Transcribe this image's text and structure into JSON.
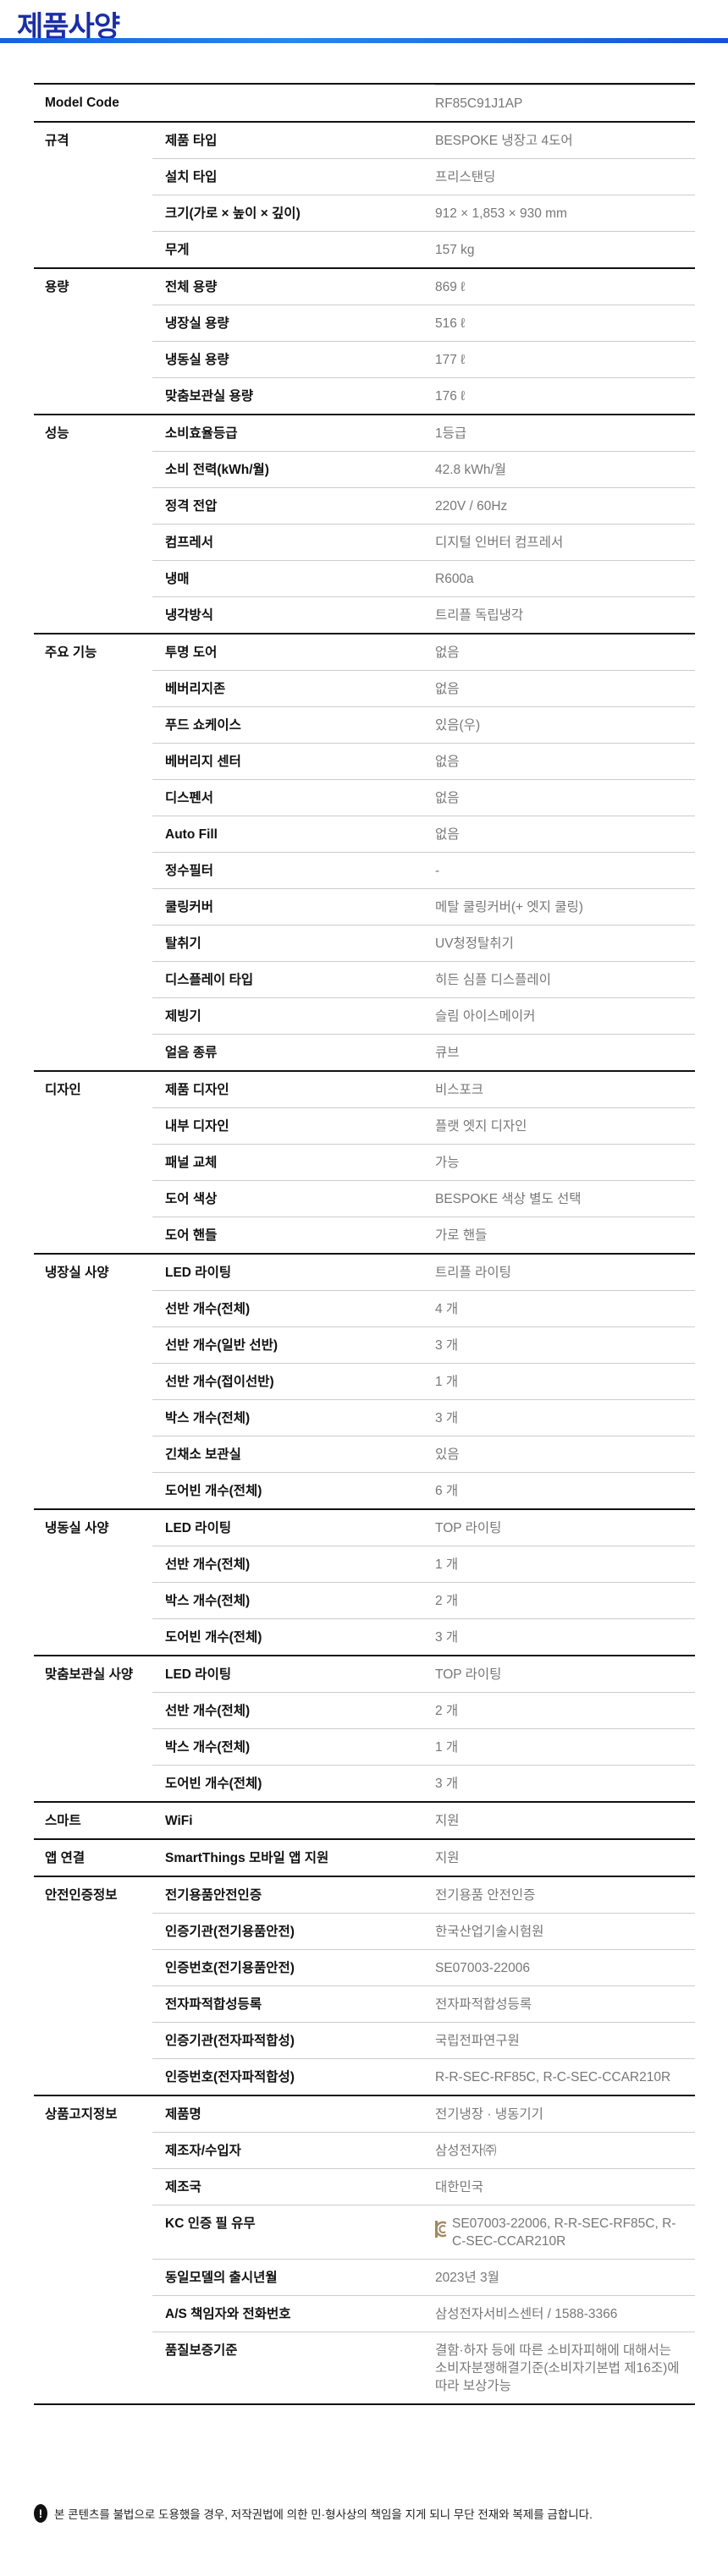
{
  "page_title": "제품사양",
  "model_code": {
    "label": "Model Code",
    "value": "RF85C91J1AP"
  },
  "groups": [
    {
      "name": "규격",
      "rows": [
        {
          "label": "제품 타입",
          "value": "BESPOKE 냉장고 4도어"
        },
        {
          "label": "설치 타입",
          "value": "프리스탠딩"
        },
        {
          "label": "크기(가로 × 높이 × 깊이)",
          "value": "912 × 1,853 × 930 mm"
        },
        {
          "label": "무게",
          "value": "157 kg"
        }
      ]
    },
    {
      "name": "용량",
      "rows": [
        {
          "label": "전체 용량",
          "value": "869 ℓ"
        },
        {
          "label": "냉장실 용량",
          "value": "516 ℓ"
        },
        {
          "label": "냉동실 용량",
          "value": "177 ℓ"
        },
        {
          "label": "맞춤보관실 용량",
          "value": "176 ℓ"
        }
      ]
    },
    {
      "name": "성능",
      "rows": [
        {
          "label": "소비효율등급",
          "value": "1등급"
        },
        {
          "label": "소비 전력(kWh/월)",
          "value": "42.8 kWh/월"
        },
        {
          "label": "정격 전압",
          "value": "220V / 60Hz"
        },
        {
          "label": "컴프레서",
          "value": "디지털 인버터 컴프레서"
        },
        {
          "label": "냉매",
          "value": "R600a"
        },
        {
          "label": "냉각방식",
          "value": "트리플 독립냉각"
        }
      ]
    },
    {
      "name": "주요 기능",
      "rows": [
        {
          "label": "투명 도어",
          "value": "없음"
        },
        {
          "label": "베버리지존",
          "value": "없음"
        },
        {
          "label": "푸드 쇼케이스",
          "value": "있음(우)"
        },
        {
          "label": "베버리지 센터",
          "value": "없음"
        },
        {
          "label": "디스펜서",
          "value": "없음"
        },
        {
          "label": "Auto Fill",
          "value": "없음"
        },
        {
          "label": "정수필터",
          "value": "-"
        },
        {
          "label": "쿨링커버",
          "value": "메탈 쿨링커버(+ 엣지 쿨링)"
        },
        {
          "label": "탈취기",
          "value": "UV청정탈취기"
        },
        {
          "label": "디스플레이 타입",
          "value": "히든 심플 디스플레이"
        },
        {
          "label": "제빙기",
          "value": "슬림 아이스메이커"
        },
        {
          "label": "얼음 종류",
          "value": "큐브"
        }
      ]
    },
    {
      "name": "디자인",
      "rows": [
        {
          "label": "제품 디자인",
          "value": "비스포크"
        },
        {
          "label": "내부 디자인",
          "value": "플랫 엣지 디자인"
        },
        {
          "label": "패널 교체",
          "value": "가능"
        },
        {
          "label": "도어 색상",
          "value": "BESPOKE 색상 별도 선택"
        },
        {
          "label": "도어 핸들",
          "value": "가로 핸들"
        }
      ]
    },
    {
      "name": "냉장실 사양",
      "rows": [
        {
          "label": "LED 라이팅",
          "value": "트리플 라이팅"
        },
        {
          "label": "선반 개수(전체)",
          "value": "4 개"
        },
        {
          "label": "선반 개수(일반 선반)",
          "value": "3 개"
        },
        {
          "label": "선반 개수(접이선반)",
          "value": "1 개"
        },
        {
          "label": "박스 개수(전체)",
          "value": "3 개"
        },
        {
          "label": "긴채소 보관실",
          "value": "있음"
        },
        {
          "label": "도어빈 개수(전체)",
          "value": "6 개"
        }
      ]
    },
    {
      "name": "냉동실 사양",
      "rows": [
        {
          "label": "LED 라이팅",
          "value": "TOP 라이팅"
        },
        {
          "label": "선반 개수(전체)",
          "value": "1 개"
        },
        {
          "label": "박스 개수(전체)",
          "value": "2 개"
        },
        {
          "label": "도어빈 개수(전체)",
          "value": "3 개"
        }
      ]
    },
    {
      "name": "맞춤보관실 사양",
      "rows": [
        {
          "label": "LED 라이팅",
          "value": "TOP 라이팅"
        },
        {
          "label": "선반 개수(전체)",
          "value": "2 개"
        },
        {
          "label": "박스 개수(전체)",
          "value": "1 개"
        },
        {
          "label": "도어빈 개수(전체)",
          "value": "3 개"
        }
      ]
    },
    {
      "name": "스마트",
      "rows": [
        {
          "label": "WiFi",
          "value": "지원"
        }
      ]
    },
    {
      "name": "앱 연결",
      "rows": [
        {
          "label": "SmartThings 모바일 앱 지원",
          "value": "지원"
        }
      ]
    },
    {
      "name": "안전인증정보",
      "rows": [
        {
          "label": "전기용품안전인증",
          "value": "전기용품 안전인증"
        },
        {
          "label": "인증기관(전기용품안전)",
          "value": "한국산업기술시험원"
        },
        {
          "label": "인증번호(전기용품안전)",
          "value": "SE07003-22006"
        },
        {
          "label": "전자파적합성등록",
          "value": "전자파적합성등록"
        },
        {
          "label": "인증기관(전자파적합성)",
          "value": "국립전파연구원"
        },
        {
          "label": "인증번호(전자파적합성)",
          "value": "R-R-SEC-RF85C, R-C-SEC-CCAR210R"
        }
      ]
    },
    {
      "name": "상품고지정보",
      "rows": [
        {
          "label": "제품명",
          "value": "전기냉장 · 냉동기기"
        },
        {
          "label": "제조자/수입자",
          "value": "삼성전자㈜"
        },
        {
          "label": "제조국",
          "value": "대한민국"
        },
        {
          "label": "KC 인증 필 유무",
          "value": "SE07003-22006, R-R-SEC-RF85C, R-C-SEC-CCAR210R",
          "icon": "kc-mark-icon"
        },
        {
          "label": "동일모델의 출시년월",
          "value": "2023년 3월"
        },
        {
          "label": "A/S 책임자와 전화번호",
          "value": "삼성전자서비스센터 / 1588-3366"
        },
        {
          "label": "품질보증기준",
          "value": "결함·하자 등에 따른 소비자피해에 대해서는 소비자분쟁해결기준(소비자기본법 제16조)에 따라 보상가능"
        }
      ]
    }
  ],
  "notice": {
    "icon": "exclamation-icon",
    "text": "본 콘텐츠를 불법으로 도용했을 경우, 저작권법에 의한 민·형사상의 책임을 지게 되니 무단 전재와 복제를 금합니다."
  },
  "colors": {
    "title": "#1b2ea6",
    "value_text": "#777777",
    "kc_mark": "#a08a60"
  }
}
